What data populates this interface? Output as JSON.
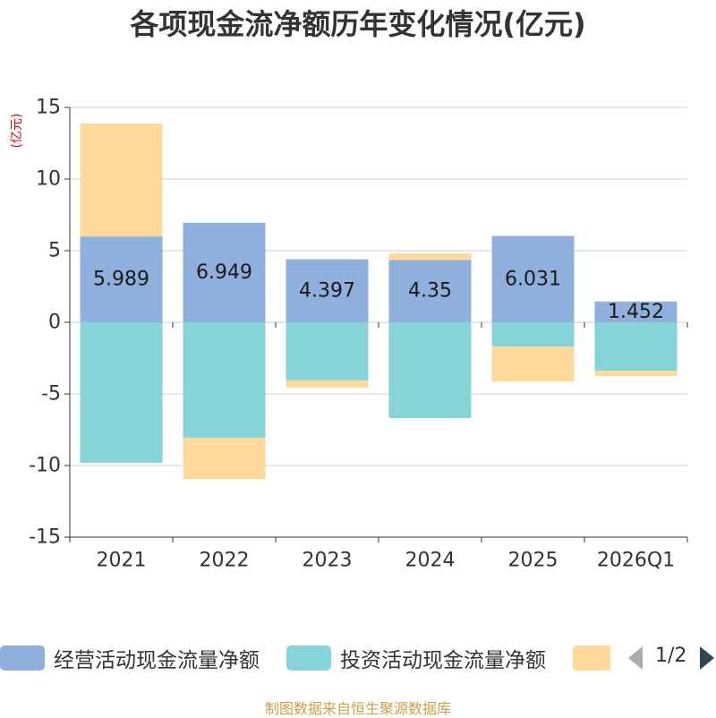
{
  "chart_data": {
    "type": "bar",
    "stacked": true,
    "title": "各项现金流净额历年变化情况(亿元)",
    "ylabel": "(亿元)",
    "xlabel": "",
    "ylim": [
      -15,
      15
    ],
    "yticks": [
      15,
      10,
      5,
      0,
      -5,
      -10,
      -15
    ],
    "categories": [
      "2021",
      "2022",
      "2023",
      "2024",
      "2025",
      "2026Q1"
    ],
    "series": [
      {
        "name": "经营活动现金流量净额",
        "color": "#8fafdc",
        "values": [
          5.989,
          6.949,
          4.397,
          4.35,
          6.031,
          1.452
        ],
        "show_labels": true
      },
      {
        "name": "投资活动现金流量净额",
        "color": "#86d4d8",
        "values": [
          -9.81,
          -8.06,
          -4.06,
          -6.69,
          -1.69,
          -3.38
        ],
        "show_labels": false
      },
      {
        "color": "#fed999",
        "values": [
          7.89,
          -2.88,
          -0.5,
          0.46,
          -2.44,
          -0.37
        ],
        "show_labels": false
      }
    ],
    "grid": true,
    "legend": "bottom"
  },
  "legend": {
    "pager": "1/2"
  },
  "footer": "制图数据来自恒生聚源数据库"
}
